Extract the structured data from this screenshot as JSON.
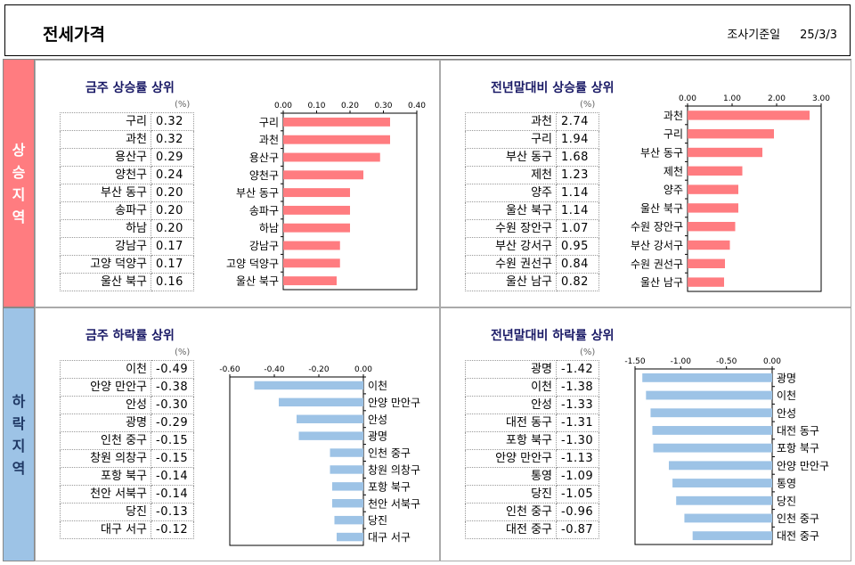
{
  "header": {
    "title": "전세가격",
    "date_label": "조사기준일",
    "date": "25/3/3"
  },
  "side": {
    "up": [
      "상",
      "승",
      "지",
      "역"
    ],
    "down": [
      "하",
      "락",
      "지",
      "역"
    ]
  },
  "colors": {
    "rise": "#ff7c80",
    "fall": "#9dc3e6",
    "up_band": "#ff7c80",
    "down_band": "#9dc3e6"
  },
  "panels": [
    {
      "title": "금주 상승률 상위",
      "unit": "(%)",
      "rows": [
        [
          "구리",
          "0.32"
        ],
        [
          "과천",
          "0.32"
        ],
        [
          "용산구",
          "0.29"
        ],
        [
          "양천구",
          "0.24"
        ],
        [
          "부산 동구",
          "0.20"
        ],
        [
          "송파구",
          "0.20"
        ],
        [
          "하남",
          "0.20"
        ],
        [
          "강남구",
          "0.17"
        ],
        [
          "고양 덕양구",
          "0.17"
        ],
        [
          "울산 북구",
          "0.16"
        ]
      ]
    },
    {
      "title": "전년말대비 상승률 상위",
      "unit": "(%)",
      "rows": [
        [
          "과천",
          "2.74"
        ],
        [
          "구리",
          "1.94"
        ],
        [
          "부산 동구",
          "1.68"
        ],
        [
          "제천",
          "1.23"
        ],
        [
          "양주",
          "1.14"
        ],
        [
          "울산 북구",
          "1.14"
        ],
        [
          "수원 장안구",
          "1.07"
        ],
        [
          "부산 강서구",
          "0.95"
        ],
        [
          "수원 권선구",
          "0.84"
        ],
        [
          "울산 남구",
          "0.82"
        ]
      ]
    },
    {
      "title": "금주 하락률 상위",
      "unit": "(%)",
      "rows": [
        [
          "이천",
          "-0.49"
        ],
        [
          "안양 만안구",
          "-0.38"
        ],
        [
          "안성",
          "-0.30"
        ],
        [
          "광명",
          "-0.29"
        ],
        [
          "인천 중구",
          "-0.15"
        ],
        [
          "창원 의창구",
          "-0.15"
        ],
        [
          "포항 북구",
          "-0.14"
        ],
        [
          "천안 서북구",
          "-0.14"
        ],
        [
          "당진",
          "-0.13"
        ],
        [
          "대구 서구",
          "-0.12"
        ]
      ]
    },
    {
      "title": "전년말대비 하락률 상위",
      "unit": "(%)",
      "rows": [
        [
          "광명",
          "-1.42"
        ],
        [
          "이천",
          "-1.38"
        ],
        [
          "안성",
          "-1.33"
        ],
        [
          "대전 동구",
          "-1.31"
        ],
        [
          "포항 북구",
          "-1.30"
        ],
        [
          "안양 만안구",
          "-1.13"
        ],
        [
          "통영",
          "-1.09"
        ],
        [
          "당진",
          "-1.05"
        ],
        [
          "인천 중구",
          "-0.96"
        ],
        [
          "대전 중구",
          "-0.87"
        ]
      ]
    }
  ],
  "chart_data": [
    {
      "type": "bar",
      "orientation": "horizontal",
      "title": "금주 상승률 상위",
      "categories": [
        "구리",
        "과천",
        "용산구",
        "양천구",
        "부산 동구",
        "송파구",
        "하남",
        "강남구",
        "고양 덕양구",
        "울산 북구"
      ],
      "values": [
        0.32,
        0.32,
        0.29,
        0.24,
        0.2,
        0.2,
        0.2,
        0.17,
        0.17,
        0.16
      ],
      "xlim": [
        0,
        0.4
      ],
      "ticks": [
        "0.00",
        "0.10",
        "0.20",
        "0.30",
        "0.40"
      ],
      "axis_position": "top",
      "label_side": "left",
      "color": "#ff7c80"
    },
    {
      "type": "bar",
      "orientation": "horizontal",
      "title": "전년말대비 상승률 상위",
      "categories": [
        "과천",
        "구리",
        "부산 동구",
        "제천",
        "양주",
        "울산 북구",
        "수원 장안구",
        "부산 강서구",
        "수원 권선구",
        "울산 남구"
      ],
      "values": [
        2.74,
        1.94,
        1.68,
        1.23,
        1.14,
        1.14,
        1.07,
        0.95,
        0.84,
        0.82
      ],
      "xlim": [
        0,
        3.0
      ],
      "ticks": [
        "0.00",
        "1.00",
        "2.00",
        "3.00"
      ],
      "axis_position": "top",
      "label_side": "left",
      "color": "#ff7c80"
    },
    {
      "type": "bar",
      "orientation": "horizontal",
      "title": "금주 하락률 상위",
      "categories": [
        "이천",
        "안양 만안구",
        "안성",
        "광명",
        "인천 중구",
        "창원 의창구",
        "포항 북구",
        "천안 서북구",
        "당진",
        "대구 서구"
      ],
      "values": [
        -0.49,
        -0.38,
        -0.3,
        -0.29,
        -0.15,
        -0.15,
        -0.14,
        -0.14,
        -0.13,
        -0.12
      ],
      "xlim": [
        -0.6,
        0
      ],
      "ticks": [
        "-0.60",
        "-0.40",
        "-0.20",
        "0.00"
      ],
      "axis_position": "top",
      "label_side": "right",
      "color": "#9dc3e6"
    },
    {
      "type": "bar",
      "orientation": "horizontal",
      "title": "전년말대비 하락률 상위",
      "categories": [
        "광명",
        "이천",
        "안성",
        "대전 동구",
        "포항 북구",
        "안양 만안구",
        "통영",
        "당진",
        "인천 중구",
        "대전 중구"
      ],
      "values": [
        -1.42,
        -1.38,
        -1.33,
        -1.31,
        -1.3,
        -1.13,
        -1.09,
        -1.05,
        -0.96,
        -0.87
      ],
      "xlim": [
        -1.5,
        0
      ],
      "ticks": [
        "-1.50",
        "-1.00",
        "-0.50",
        "0.00"
      ],
      "axis_position": "top",
      "label_side": "right",
      "color": "#9dc3e6"
    }
  ]
}
